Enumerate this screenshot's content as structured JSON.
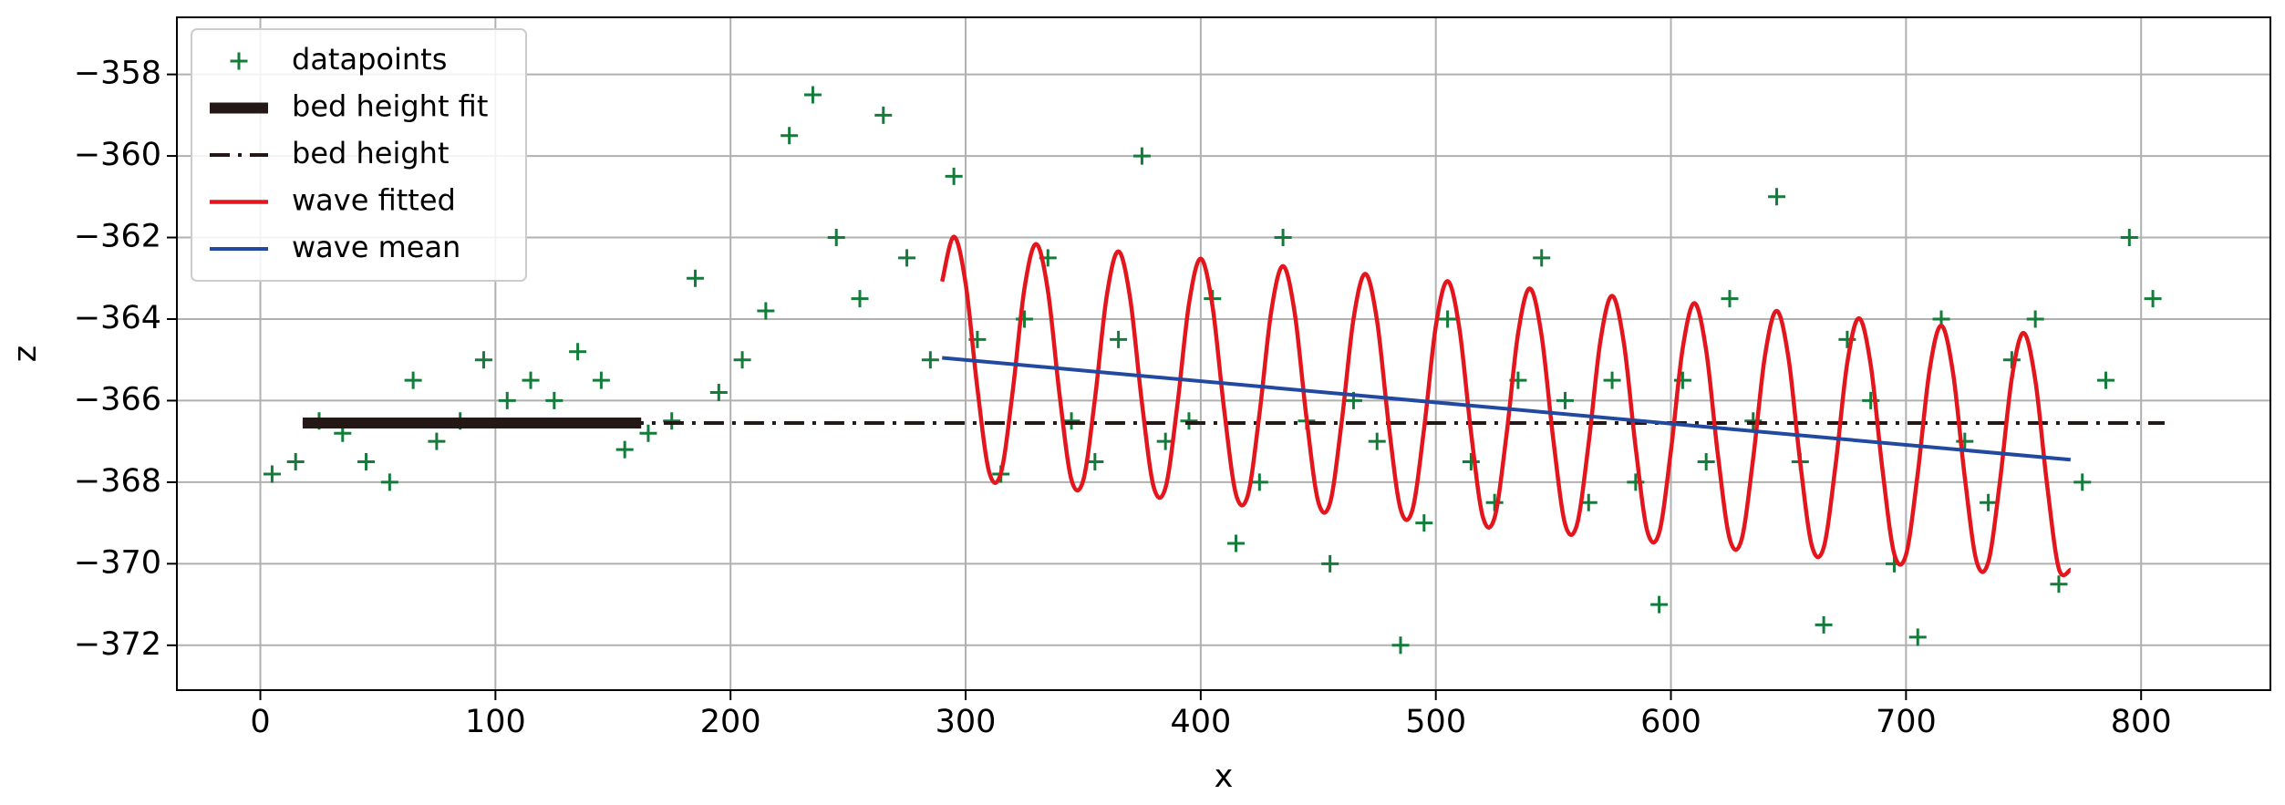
{
  "chart_data": {
    "type": "line",
    "x_label": "x",
    "y_label": "z",
    "xlim": [
      -35.5,
      855
    ],
    "ylim": [
      -373.1,
      -356.6
    ],
    "xticks": [
      0,
      100,
      200,
      300,
      400,
      500,
      600,
      700,
      800
    ],
    "yticks": [
      {
        "value": -358,
        "label": "−358"
      },
      {
        "value": -360,
        "label": "−360"
      },
      {
        "value": -362,
        "label": "−362"
      },
      {
        "value": -364,
        "label": "−364"
      },
      {
        "value": -366,
        "label": "−366"
      },
      {
        "value": -368,
        "label": "−368"
      },
      {
        "value": -370,
        "label": "−370"
      },
      {
        "value": -372,
        "label": "−372"
      }
    ],
    "grid": true,
    "legend": "upper left",
    "series": [
      {
        "name": "datapoints",
        "color": "#137c3a",
        "marker": "+",
        "x": [
          5,
          15,
          25,
          35,
          45,
          55,
          65,
          75,
          85,
          95,
          105,
          115,
          125,
          135,
          145,
          155,
          165,
          175,
          185,
          195,
          205,
          215,
          225,
          235,
          245,
          255,
          265,
          275,
          285,
          295,
          305,
          315,
          325,
          335,
          345,
          355,
          365,
          375,
          385,
          395,
          405,
          415,
          425,
          435,
          445,
          455,
          465,
          475,
          485,
          495,
          505,
          515,
          525,
          535,
          545,
          555,
          565,
          575,
          585,
          595,
          605,
          615,
          625,
          635,
          645,
          655,
          665,
          675,
          685,
          695,
          705,
          715,
          725,
          735,
          745,
          755,
          765,
          775,
          785,
          795,
          805
        ],
        "values": [
          -367.8,
          -367.5,
          -366.5,
          -366.8,
          -367.5,
          -368.0,
          -365.5,
          -367.0,
          -366.5,
          -365.0,
          -366.0,
          -365.5,
          -366.0,
          -364.8,
          -365.5,
          -367.2,
          -366.8,
          -366.5,
          -363.0,
          -365.8,
          -365.0,
          -363.8,
          -359.5,
          -358.5,
          -362.0,
          -363.5,
          -359.0,
          -362.5,
          -365.0,
          -360.5,
          -364.5,
          -367.8,
          -364.0,
          -362.5,
          -366.5,
          -367.5,
          -364.5,
          -360.0,
          -367.0,
          -366.5,
          -363.5,
          -369.5,
          -368.0,
          -362.0,
          -366.5,
          -370.0,
          -366.0,
          -367.0,
          -372.0,
          -369.0,
          -364.0,
          -367.5,
          -368.5,
          -365.5,
          -362.5,
          -366.0,
          -368.5,
          -365.5,
          -368.0,
          -371.0,
          -365.5,
          -367.5,
          -363.5,
          -366.5,
          -361.0,
          -367.5,
          -371.5,
          -364.5,
          -366.0,
          -370.0,
          -371.8,
          -364.0,
          -367.0,
          -368.5,
          -365.0,
          -364.0,
          -370.5,
          -368.0,
          -365.5,
          -362.0,
          -363.5
        ]
      },
      {
        "name": "bed height fit",
        "color": "#231815",
        "linestyle": "solid",
        "x": [
          18,
          162
        ],
        "values": [
          -366.55,
          -366.55
        ]
      },
      {
        "name": "bed height",
        "color": "#231815",
        "linestyle": "dashdot",
        "x": [
          18,
          810
        ],
        "values": [
          -366.55,
          -366.55
        ]
      },
      {
        "name": "wave fitted",
        "color": "#e3151d",
        "linestyle": "solid",
        "smooth": true,
        "x": [
          290,
          295,
          300,
          305,
          310,
          315,
          320,
          325,
          330,
          335,
          340,
          345,
          350,
          355,
          360,
          365,
          370,
          375,
          380,
          385,
          390,
          395,
          400,
          405,
          410,
          415,
          420,
          425,
          430,
          435,
          440,
          445,
          450,
          455,
          460,
          465,
          470,
          475,
          480,
          485,
          490,
          495,
          500,
          505,
          510,
          515,
          520,
          525,
          530,
          535,
          540,
          545,
          550,
          555,
          560,
          565,
          570,
          575,
          580,
          585,
          590,
          595,
          600,
          605,
          610,
          615,
          620,
          625,
          630,
          635,
          640,
          645,
          650,
          655,
          660,
          665,
          670,
          675,
          680,
          685,
          690,
          695,
          700,
          705,
          710,
          715,
          720,
          725,
          730,
          735,
          740,
          745,
          750,
          755,
          760,
          765,
          770
        ],
        "values": [
          -363.08,
          -361.98,
          -363.13,
          -365.7,
          -367.75,
          -367.78,
          -365.78,
          -363.26,
          -362.16,
          -363.31,
          -365.88,
          -367.94,
          -367.96,
          -365.96,
          -363.44,
          -362.34,
          -363.5,
          -366.06,
          -368.12,
          -368.14,
          -366.14,
          -363.63,
          -362.52,
          -363.68,
          -366.24,
          -368.3,
          -368.33,
          -366.32,
          -363.81,
          -362.7,
          -363.86,
          -366.43,
          -368.48,
          -368.51,
          -366.5,
          -363.99,
          -362.89,
          -364.04,
          -366.61,
          -368.66,
          -368.69,
          -366.69,
          -364.17,
          -363.07,
          -364.22,
          -366.79,
          -368.85,
          -368.87,
          -366.87,
          -364.35,
          -363.25,
          -364.41,
          -366.97,
          -369.03,
          -369.05,
          -367.05,
          -364.54,
          -363.43,
          -364.59,
          -367.15,
          -369.21,
          -369.24,
          -367.23,
          -364.72,
          -363.61,
          -364.77,
          -367.34,
          -369.39,
          -369.42,
          -367.41,
          -364.9,
          -363.8,
          -364.95,
          -367.52,
          -369.57,
          -369.6,
          -367.6,
          -365.08,
          -363.98,
          -365.13,
          -367.7,
          -369.76,
          -369.78,
          -367.78,
          -365.26,
          -364.16,
          -365.32,
          -367.88,
          -369.94,
          -369.96,
          -367.96,
          -365.45,
          -364.34,
          -365.5,
          -368.06,
          -370.12,
          -370.15
        ]
      },
      {
        "name": "wave mean",
        "color": "#2249a0",
        "linestyle": "solid",
        "x": [
          290,
          770
        ],
        "values": [
          -364.95,
          -367.45
        ]
      }
    ]
  }
}
